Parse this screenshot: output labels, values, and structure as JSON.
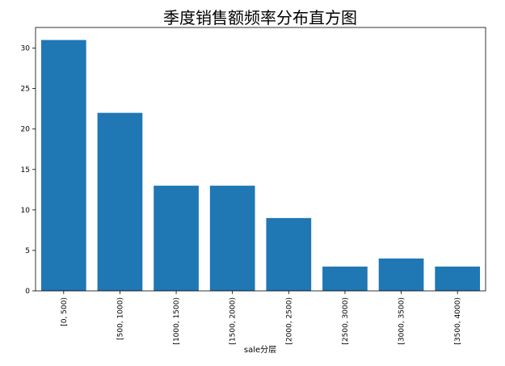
{
  "chart_data": {
    "type": "bar",
    "title": "季度销售额频率分布直方图",
    "xlabel": "sale分层",
    "ylabel": "",
    "categories": [
      "[0, 500)",
      "[500, 1000)",
      "[1000, 1500)",
      "[1500, 2000)",
      "[2000, 2500)",
      "[2500, 3000)",
      "[3000, 3500)",
      "[3500, 4000)"
    ],
    "values": [
      31,
      22,
      13,
      13,
      9,
      3,
      4,
      3
    ],
    "ylim": [
      0,
      32.55
    ],
    "yticks": [
      0,
      5,
      10,
      15,
      20,
      25,
      30
    ],
    "bar_color": "#1f77b4",
    "grid": false,
    "legend": "none"
  }
}
